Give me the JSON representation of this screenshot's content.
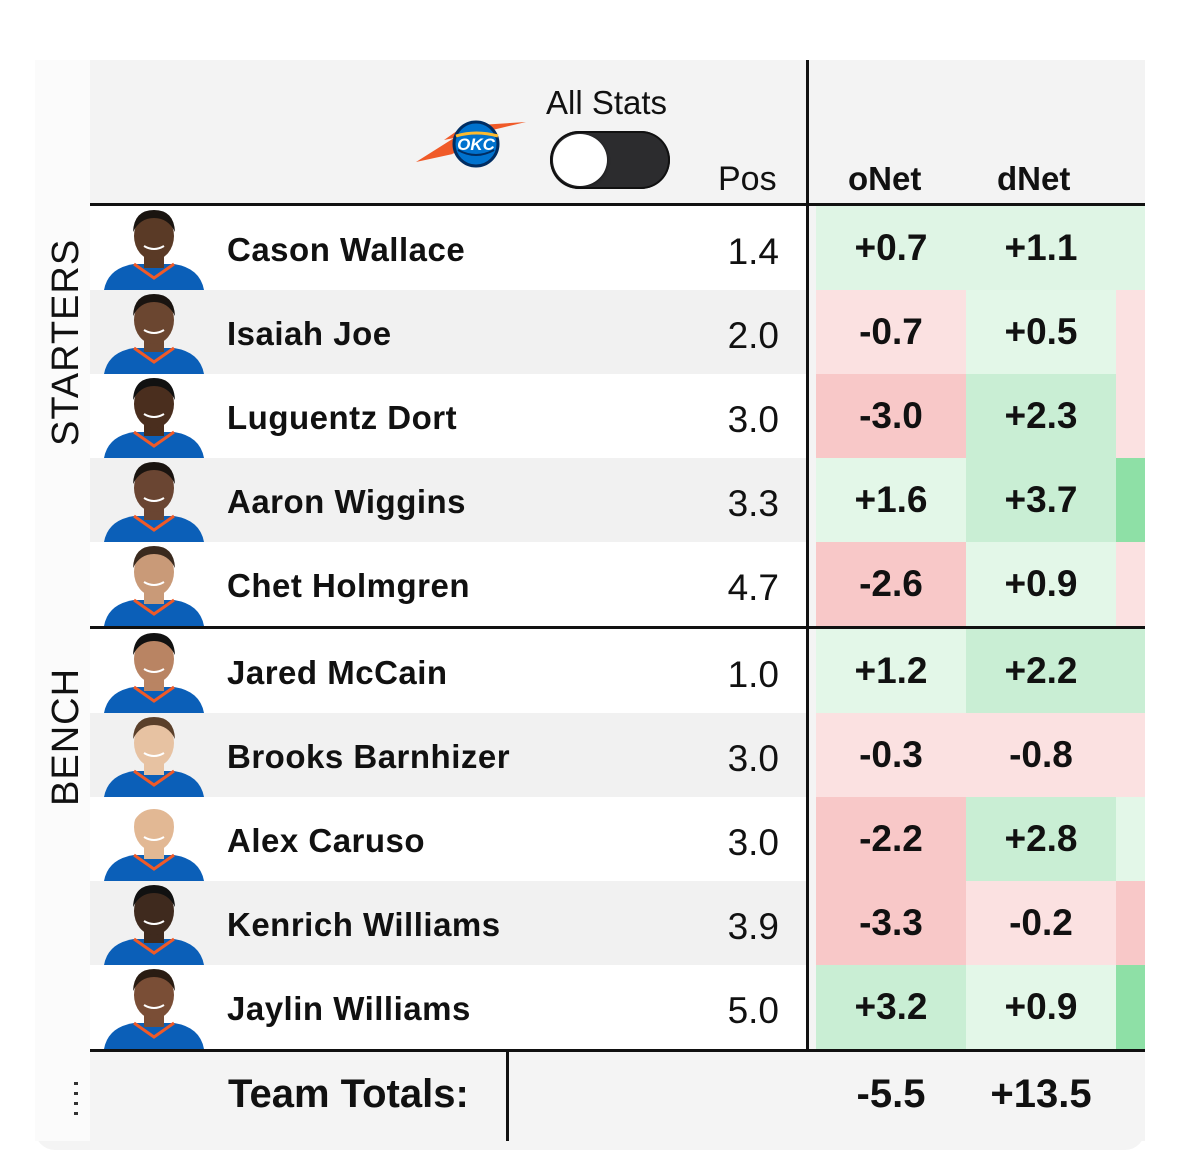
{
  "header": {
    "team_logo_icon": "okc-thunder-logo-icon",
    "all_stats_label": "All Stats",
    "all_stats_toggle_on": false,
    "col_pos": "Pos",
    "col_onet": "oNet",
    "col_dnet": "dNet"
  },
  "sections": {
    "starters": "STARTERS",
    "bench": "BENCH"
  },
  "colors": {
    "green_light": "#dff5e5",
    "green_mid": "#c9eed4",
    "green_strong": "#8ee0a6",
    "red_light": "#fbe1e1",
    "red_mid": "#f8c8c8",
    "row_white": "#ffffff",
    "row_gray": "#f1f1f1"
  },
  "players": [
    {
      "name": "Cason Wallace",
      "pos": "1.4",
      "onet": "+0.7",
      "dnet": "+1.1"
    },
    {
      "name": "Isaiah Joe",
      "pos": "2.0",
      "onet": "-0.7",
      "dnet": "+0.5"
    },
    {
      "name": "Luguentz Dort",
      "pos": "3.0",
      "onet": "-3.0",
      "dnet": "+2.3"
    },
    {
      "name": "Aaron Wiggins",
      "pos": "3.3",
      "onet": "+1.6",
      "dnet": "+3.7"
    },
    {
      "name": "Chet Holmgren",
      "pos": "4.7",
      "onet": "-2.6",
      "dnet": "+0.9"
    },
    {
      "name": "Jared McCain",
      "pos": "1.0",
      "onet": "+1.2",
      "dnet": "+2.2"
    },
    {
      "name": "Brooks Barnhizer",
      "pos": "3.0",
      "onet": "-0.3",
      "dnet": "-0.8"
    },
    {
      "name": "Alex Caruso",
      "pos": "3.0",
      "onet": "-2.2",
      "dnet": "+2.8"
    },
    {
      "name": "Kenrich Williams",
      "pos": "3.9",
      "onet": "-3.3",
      "dnet": "-0.2"
    },
    {
      "name": "Jaylin Williams",
      "pos": "5.0",
      "onet": "+3.2",
      "dnet": "+0.9"
    }
  ],
  "totals": {
    "label": "Team Totals:",
    "onet": "-5.5",
    "dnet": "+13.5"
  }
}
